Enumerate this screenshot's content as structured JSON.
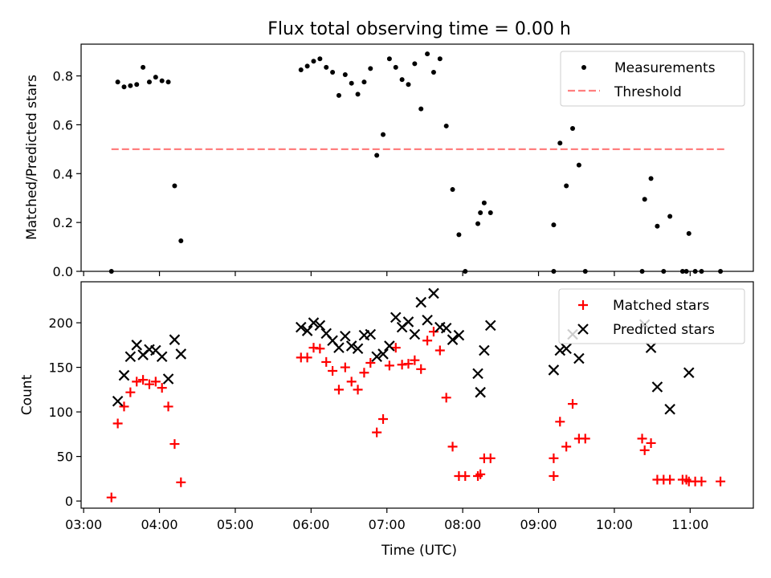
{
  "title": "Flux total observing time = 0.00 h",
  "xlabel": "Time (UTC)",
  "colors": {
    "measurements": "#000000",
    "threshold": "#ff7f7f",
    "matched": "#ff0000",
    "predicted": "#000000"
  },
  "chart_data": [
    {
      "type": "scatter",
      "ylabel": "Matched/Predicted stars",
      "ylim": [
        0,
        0.93
      ],
      "yticks": [
        "0.0",
        "0.2",
        "0.4",
        "0.6",
        "0.8"
      ],
      "xlim": [
        "02:58",
        "11:50"
      ],
      "legend": "top-right",
      "threshold": {
        "name": "Threshold",
        "value": 0.5,
        "x_from": "03:22",
        "x_to": "11:27"
      },
      "series": [
        {
          "name": "Measurements",
          "marker": "dot",
          "points": [
            [
              "03:22",
              0.0
            ],
            [
              "03:27",
              0.775
            ],
            [
              "03:32",
              0.755
            ],
            [
              "03:37",
              0.76
            ],
            [
              "03:42",
              0.765
            ],
            [
              "03:47",
              0.835
            ],
            [
              "03:52",
              0.775
            ],
            [
              "03:57",
              0.795
            ],
            [
              "04:02",
              0.78
            ],
            [
              "04:07",
              0.775
            ],
            [
              "04:12",
              0.35
            ],
            [
              "04:17",
              0.125
            ],
            [
              "05:52",
              0.825
            ],
            [
              "05:57",
              0.84
            ],
            [
              "06:02",
              0.86
            ],
            [
              "06:07",
              0.87
            ],
            [
              "06:12",
              0.835
            ],
            [
              "06:17",
              0.815
            ],
            [
              "06:22",
              0.72
            ],
            [
              "06:27",
              0.805
            ],
            [
              "06:32",
              0.77
            ],
            [
              "06:37",
              0.725
            ],
            [
              "06:42",
              0.775
            ],
            [
              "06:47",
              0.83
            ],
            [
              "06:52",
              0.475
            ],
            [
              "06:57",
              0.56
            ],
            [
              "07:02",
              0.87
            ],
            [
              "07:07",
              0.835
            ],
            [
              "07:12",
              0.785
            ],
            [
              "07:17",
              0.765
            ],
            [
              "07:22",
              0.85
            ],
            [
              "07:27",
              0.665
            ],
            [
              "07:32",
              0.89
            ],
            [
              "07:37",
              0.815
            ],
            [
              "07:42",
              0.87
            ],
            [
              "07:47",
              0.595
            ],
            [
              "07:52",
              0.335
            ],
            [
              "07:57",
              0.15
            ],
            [
              "08:02",
              0.0
            ],
            [
              "08:12",
              0.195
            ],
            [
              "08:14",
              0.24
            ],
            [
              "08:17",
              0.28
            ],
            [
              "08:22",
              0.24
            ],
            [
              "09:12",
              0.19
            ],
            [
              "09:12",
              0.0
            ],
            [
              "09:17",
              0.525
            ],
            [
              "09:22",
              0.35
            ],
            [
              "09:27",
              0.585
            ],
            [
              "09:32",
              0.435
            ],
            [
              "09:37",
              0.0
            ],
            [
              "10:22",
              0.0
            ],
            [
              "10:24",
              0.295
            ],
            [
              "10:29",
              0.38
            ],
            [
              "10:34",
              0.185
            ],
            [
              "10:39",
              0.0
            ],
            [
              "10:44",
              0.225
            ],
            [
              "10:54",
              0.0
            ],
            [
              "10:57",
              0.0
            ],
            [
              "10:59",
              0.155
            ],
            [
              "11:04",
              0.0
            ],
            [
              "11:09",
              0.0
            ],
            [
              "11:24",
              0.0
            ]
          ]
        }
      ]
    },
    {
      "type": "scatter",
      "ylabel": "Count",
      "ylim": [
        -8,
        246
      ],
      "yticks": [
        "0",
        "50",
        "100",
        "150",
        "200"
      ],
      "xlim": [
        "02:58",
        "11:50"
      ],
      "xticks": [
        "03:00",
        "04:00",
        "05:00",
        "06:00",
        "07:00",
        "08:00",
        "09:00",
        "10:00",
        "11:00"
      ],
      "legend": "top-right",
      "series": [
        {
          "name": "Matched stars",
          "marker": "plus",
          "points": [
            [
              "03:22",
              4
            ],
            [
              "03:27",
              87
            ],
            [
              "03:32",
              106
            ],
            [
              "03:37",
              122
            ],
            [
              "03:42",
              134
            ],
            [
              "03:47",
              136
            ],
            [
              "03:52",
              131
            ],
            [
              "03:57",
              134
            ],
            [
              "04:02",
              127
            ],
            [
              "04:07",
              106
            ],
            [
              "04:12",
              64
            ],
            [
              "04:17",
              21
            ],
            [
              "05:52",
              161
            ],
            [
              "05:57",
              161
            ],
            [
              "06:02",
              172
            ],
            [
              "06:07",
              171
            ],
            [
              "06:12",
              156
            ],
            [
              "06:17",
              146
            ],
            [
              "06:22",
              125
            ],
            [
              "06:27",
              150
            ],
            [
              "06:32",
              134
            ],
            [
              "06:37",
              125
            ],
            [
              "06:42",
              144
            ],
            [
              "06:47",
              155
            ],
            [
              "06:52",
              77
            ],
            [
              "06:57",
              92
            ],
            [
              "07:02",
              152
            ],
            [
              "07:07",
              172
            ],
            [
              "07:12",
              153
            ],
            [
              "07:17",
              154
            ],
            [
              "07:22",
              158
            ],
            [
              "07:27",
              148
            ],
            [
              "07:32",
              180
            ],
            [
              "07:37",
              190
            ],
            [
              "07:42",
              169
            ],
            [
              "07:47",
              116
            ],
            [
              "07:52",
              61
            ],
            [
              "07:57",
              28
            ],
            [
              "08:02",
              28
            ],
            [
              "08:12",
              28
            ],
            [
              "08:14",
              30
            ],
            [
              "08:17",
              48
            ],
            [
              "08:22",
              48
            ],
            [
              "09:12",
              48
            ],
            [
              "09:12",
              28
            ],
            [
              "09:17",
              89
            ],
            [
              "09:22",
              61
            ],
            [
              "09:27",
              109
            ],
            [
              "09:32",
              70
            ],
            [
              "09:37",
              70
            ],
            [
              "10:22",
              70
            ],
            [
              "10:24",
              57
            ],
            [
              "10:29",
              65
            ],
            [
              "10:34",
              24
            ],
            [
              "10:39",
              24
            ],
            [
              "10:44",
              24
            ],
            [
              "10:54",
              24
            ],
            [
              "10:57",
              24
            ],
            [
              "10:59",
              22
            ],
            [
              "11:04",
              22
            ],
            [
              "11:09",
              22
            ],
            [
              "11:24",
              22
            ]
          ]
        },
        {
          "name": "Predicted stars",
          "marker": "x",
          "points": [
            [
              "03:27",
              112
            ],
            [
              "03:32",
              141
            ],
            [
              "03:37",
              162
            ],
            [
              "03:42",
              175
            ],
            [
              "03:47",
              164
            ],
            [
              "03:52",
              170
            ],
            [
              "03:57",
              169
            ],
            [
              "04:02",
              162
            ],
            [
              "04:07",
              137
            ],
            [
              "04:12",
              181
            ],
            [
              "04:17",
              165
            ],
            [
              "05:52",
              195
            ],
            [
              "05:57",
              191
            ],
            [
              "06:02",
              200
            ],
            [
              "06:07",
              197
            ],
            [
              "06:12",
              188
            ],
            [
              "06:17",
              180
            ],
            [
              "06:22",
              172
            ],
            [
              "06:27",
              185
            ],
            [
              "06:32",
              174
            ],
            [
              "06:37",
              171
            ],
            [
              "06:42",
              186
            ],
            [
              "06:47",
              187
            ],
            [
              "06:52",
              162
            ],
            [
              "06:57",
              165
            ],
            [
              "07:02",
              174
            ],
            [
              "07:07",
              206
            ],
            [
              "07:12",
              195
            ],
            [
              "07:17",
              201
            ],
            [
              "07:22",
              187
            ],
            [
              "07:27",
              223
            ],
            [
              "07:32",
              203
            ],
            [
              "07:37",
              233
            ],
            [
              "07:42",
              195
            ],
            [
              "07:47",
              194
            ],
            [
              "07:52",
              181
            ],
            [
              "07:57",
              186
            ],
            [
              "08:12",
              143
            ],
            [
              "08:14",
              122
            ],
            [
              "08:17",
              169
            ],
            [
              "08:22",
              197
            ],
            [
              "09:12",
              147
            ],
            [
              "09:17",
              169
            ],
            [
              "09:22",
              171
            ],
            [
              "09:27",
              187
            ],
            [
              "09:32",
              160
            ],
            [
              "10:24",
              198
            ],
            [
              "10:29",
              172
            ],
            [
              "10:34",
              128
            ],
            [
              "10:44",
              103
            ],
            [
              "10:59",
              144
            ]
          ]
        }
      ]
    }
  ]
}
